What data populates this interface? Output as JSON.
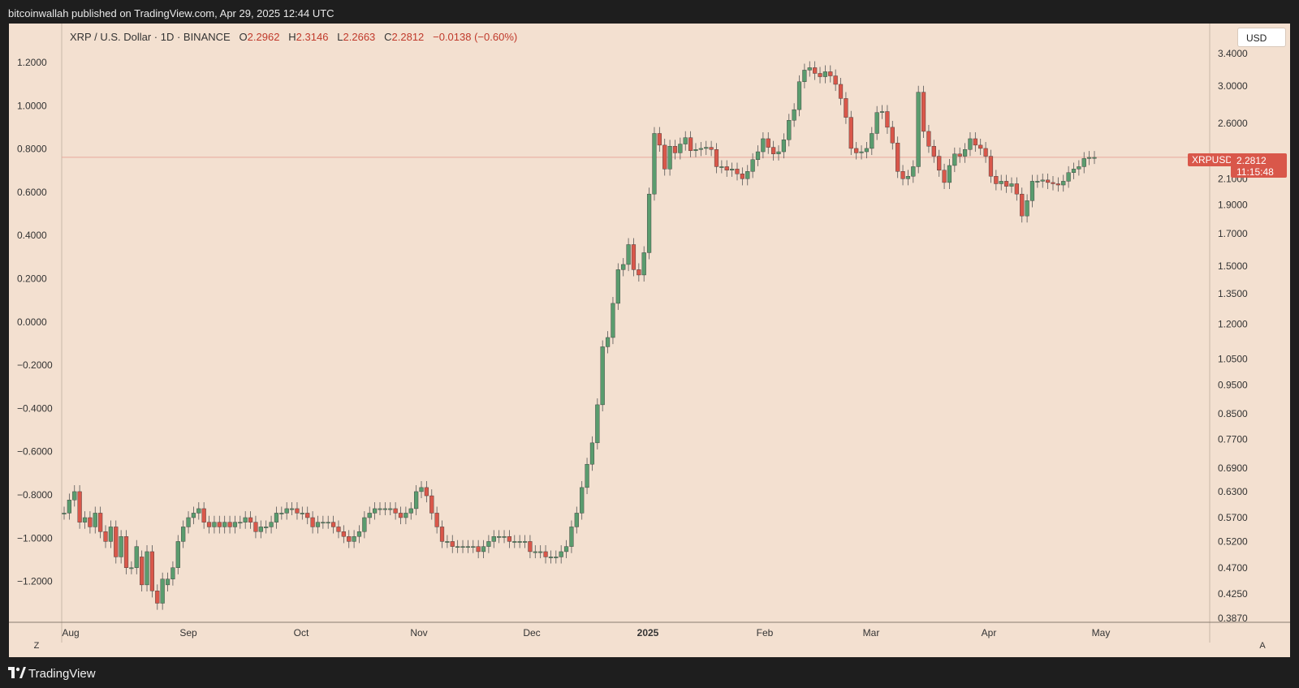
{
  "header": {
    "published_text": "bitcoinwallah published on TradingView.com, Apr 29, 2025 12:44 UTC"
  },
  "symbol": {
    "name": "XRP / U.S. Dollar · 1D · BINANCE",
    "o_label": "O",
    "o_value": "2.2962",
    "h_label": "H",
    "h_value": "2.3146",
    "l_label": "L",
    "l_value": "2.2663",
    "c_label": "C",
    "c_value": "2.2812",
    "change": "−0.0138 (−0.60%)"
  },
  "currency_button": "USD",
  "price_tag": {
    "symbol": "XRPUSD",
    "price": "2.2812",
    "countdown": "11:15:48"
  },
  "footer": {
    "brand": "TradingView"
  },
  "buttons": {
    "z": "Z",
    "a": "A"
  },
  "colors": {
    "background": "#f3e0d0",
    "up": "#5a9c6e",
    "down": "#d9574a",
    "frame": "#1e1e1e"
  },
  "chart_data": {
    "type": "candlestick",
    "title": "XRP / U.S. Dollar · 1D · BINANCE",
    "left_axis": {
      "ticks": [
        "1.2000",
        "1.0000",
        "0.8000",
        "0.6000",
        "0.4000",
        "0.2000",
        "0.0000",
        "−0.2000",
        "−0.4000",
        "−0.6000",
        "−0.8000",
        "−1.0000",
        "−1.2000"
      ],
      "range": [
        -1.33,
        1.36
      ]
    },
    "right_axis": {
      "scale": "log",
      "ticks": [
        "3.4000",
        "3.0000",
        "2.6000",
        "2.1000",
        "1.9000",
        "1.7000",
        "1.5000",
        "1.3500",
        "1.2000",
        "1.0500",
        "0.9500",
        "0.8500",
        "0.7700",
        "0.6900",
        "0.6300",
        "0.5700",
        "0.5200",
        "0.4700",
        "0.4250",
        "0.3870"
      ]
    },
    "x_axis": {
      "labels": [
        "Aug",
        "Sep",
        "Oct",
        "Nov",
        "Dec",
        "2025",
        "Feb",
        "Mar",
        "Apr",
        "May"
      ],
      "bold": [
        "2025"
      ]
    },
    "last_price": 2.2812,
    "grid": false,
    "candles": [
      [
        0.58,
        0.58,
        0.61,
        0.63,
        0.56,
        0.57
      ],
      [
        0.57,
        0.55,
        0.58,
        0.54,
        0.52,
        0.55
      ],
      [
        0.55,
        0.49,
        0.53,
        0.47,
        0.47,
        0.51
      ],
      [
        0.49,
        0.44,
        0.5,
        0.43,
        0.41,
        0.45
      ],
      [
        0.44,
        0.45,
        0.47,
        0.52,
        0.55,
        0.57
      ],
      [
        0.57,
        0.58,
        0.59,
        0.56,
        0.55,
        0.56
      ],
      [
        0.56,
        0.55,
        0.56,
        0.55,
        0.56,
        0.56
      ],
      [
        0.56,
        0.57,
        0.56,
        0.54,
        0.55,
        0.55
      ],
      [
        0.55,
        0.56,
        0.58,
        0.58,
        0.59,
        0.59
      ],
      [
        0.59,
        0.58,
        0.58,
        0.57,
        0.55,
        0.56
      ],
      [
        0.56,
        0.56,
        0.56,
        0.55,
        0.54,
        0.53
      ],
      [
        0.53,
        0.52,
        0.53,
        0.54,
        0.57,
        0.58
      ],
      [
        0.58,
        0.59,
        0.59,
        0.59,
        0.59,
        0.58
      ],
      [
        0.58,
        0.57,
        0.58,
        0.59,
        0.63,
        0.64
      ],
      [
        0.64,
        0.62,
        0.58,
        0.55,
        0.52,
        0.52
      ],
      [
        0.52,
        0.51,
        0.51,
        0.51,
        0.51,
        0.51
      ],
      [
        0.51,
        0.5,
        0.51,
        0.52,
        0.53,
        0.53
      ],
      [
        0.53,
        0.53,
        0.52,
        0.52,
        0.52,
        0.52
      ],
      [
        0.52,
        0.5,
        0.5,
        0.5,
        0.49,
        0.49
      ],
      [
        0.49,
        0.49,
        0.5,
        0.51,
        0.55,
        0.58
      ],
      [
        0.58,
        0.64,
        0.7,
        0.76,
        0.88,
        1.1
      ],
      [
        1.1,
        1.14,
        1.3,
        1.48,
        1.51,
        1.63
      ],
      [
        1.63,
        1.48,
        1.45,
        1.58,
        1.98,
        2.5
      ],
      [
        2.5,
        2.39,
        2.18,
        2.38,
        2.32,
        2.4
      ],
      [
        2.4,
        2.46,
        2.34,
        2.35,
        2.36,
        2.37
      ],
      [
        2.37,
        2.35,
        2.2,
        2.2,
        2.17,
        2.18
      ],
      [
        2.18,
        2.14,
        2.1,
        2.16,
        2.26,
        2.33
      ],
      [
        2.33,
        2.45,
        2.37,
        2.31,
        2.33,
        2.44
      ],
      [
        2.44,
        2.63,
        2.74,
        3.05,
        3.19,
        3.22
      ],
      [
        3.22,
        3.15,
        3.11,
        3.17,
        3.12,
        3.02
      ],
      [
        3.02,
        2.86,
        2.66,
        2.36,
        2.32,
        2.33
      ],
      [
        2.33,
        2.36,
        2.5,
        2.71,
        2.72,
        2.56
      ],
      [
        2.56,
        2.41,
        2.16,
        2.1,
        2.12,
        2.2
      ],
      [
        2.2,
        2.93,
        2.52,
        2.38,
        2.29,
        2.17
      ],
      [
        2.17,
        2.07,
        2.21,
        2.31,
        2.29,
        2.35
      ],
      [
        2.35,
        2.45,
        2.39,
        2.36,
        2.29,
        2.12
      ],
      [
        2.12,
        2.06,
        2.08,
        2.04,
        2.06,
        1.98
      ],
      [
        1.98,
        1.82,
        1.93,
        2.08,
        2.08,
        2.09
      ],
      [
        2.09,
        2.07,
        2.06,
        2.05,
        2.08,
        2.15
      ],
      [
        2.15,
        2.18,
        2.2,
        2.27,
        2.28,
        2.28
      ]
    ]
  }
}
